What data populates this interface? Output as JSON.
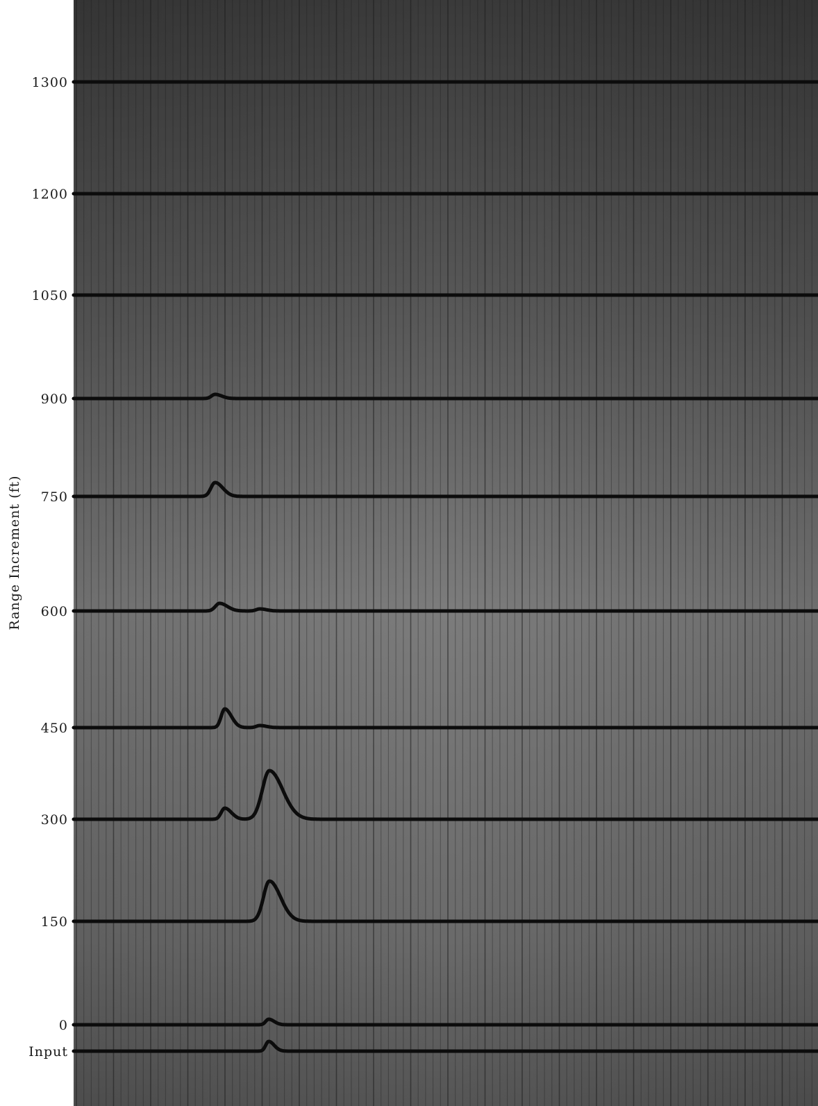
{
  "chart_data": {
    "type": "line",
    "title": "",
    "ylabel": "Range Increment (ft)",
    "xlabel": "",
    "grid": true,
    "colors": {
      "background_dark": "#3e3e3e",
      "background_light": "#8a8a8a",
      "grid_line": "#1e1e1e",
      "trace": "#0c0c0c",
      "label": "#1a1a1a"
    },
    "series": [
      {
        "name": "1300",
        "pulses": []
      },
      {
        "name": "1200",
        "pulses": []
      },
      {
        "name": "1050",
        "pulses": []
      },
      {
        "name": "900",
        "pulses": [
          {
            "x": 0.19,
            "height": 6,
            "width": 0.012
          }
        ]
      },
      {
        "name": "750",
        "pulses": [
          {
            "x": 0.19,
            "height": 20,
            "width": 0.014
          }
        ]
      },
      {
        "name": "600",
        "pulses": [
          {
            "x": 0.196,
            "height": 11,
            "width": 0.014
          },
          {
            "x": 0.25,
            "height": 3,
            "width": 0.012
          }
        ]
      },
      {
        "name": "450",
        "pulses": [
          {
            "x": 0.203,
            "height": 27,
            "width": 0.012
          },
          {
            "x": 0.25,
            "height": 3,
            "width": 0.012
          }
        ]
      },
      {
        "name": "300",
        "pulses": [
          {
            "x": 0.203,
            "height": 16,
            "width": 0.012
          },
          {
            "x": 0.263,
            "height": 70,
            "width": 0.024
          }
        ]
      },
      {
        "name": "150",
        "pulses": [
          {
            "x": 0.263,
            "height": 58,
            "width": 0.02
          }
        ]
      },
      {
        "name": "0",
        "pulses": [
          {
            "x": 0.262,
            "height": 8,
            "width": 0.01
          }
        ]
      },
      {
        "name": "Input",
        "pulses": [
          {
            "x": 0.262,
            "height": 14,
            "width": 0.01
          }
        ]
      }
    ]
  }
}
